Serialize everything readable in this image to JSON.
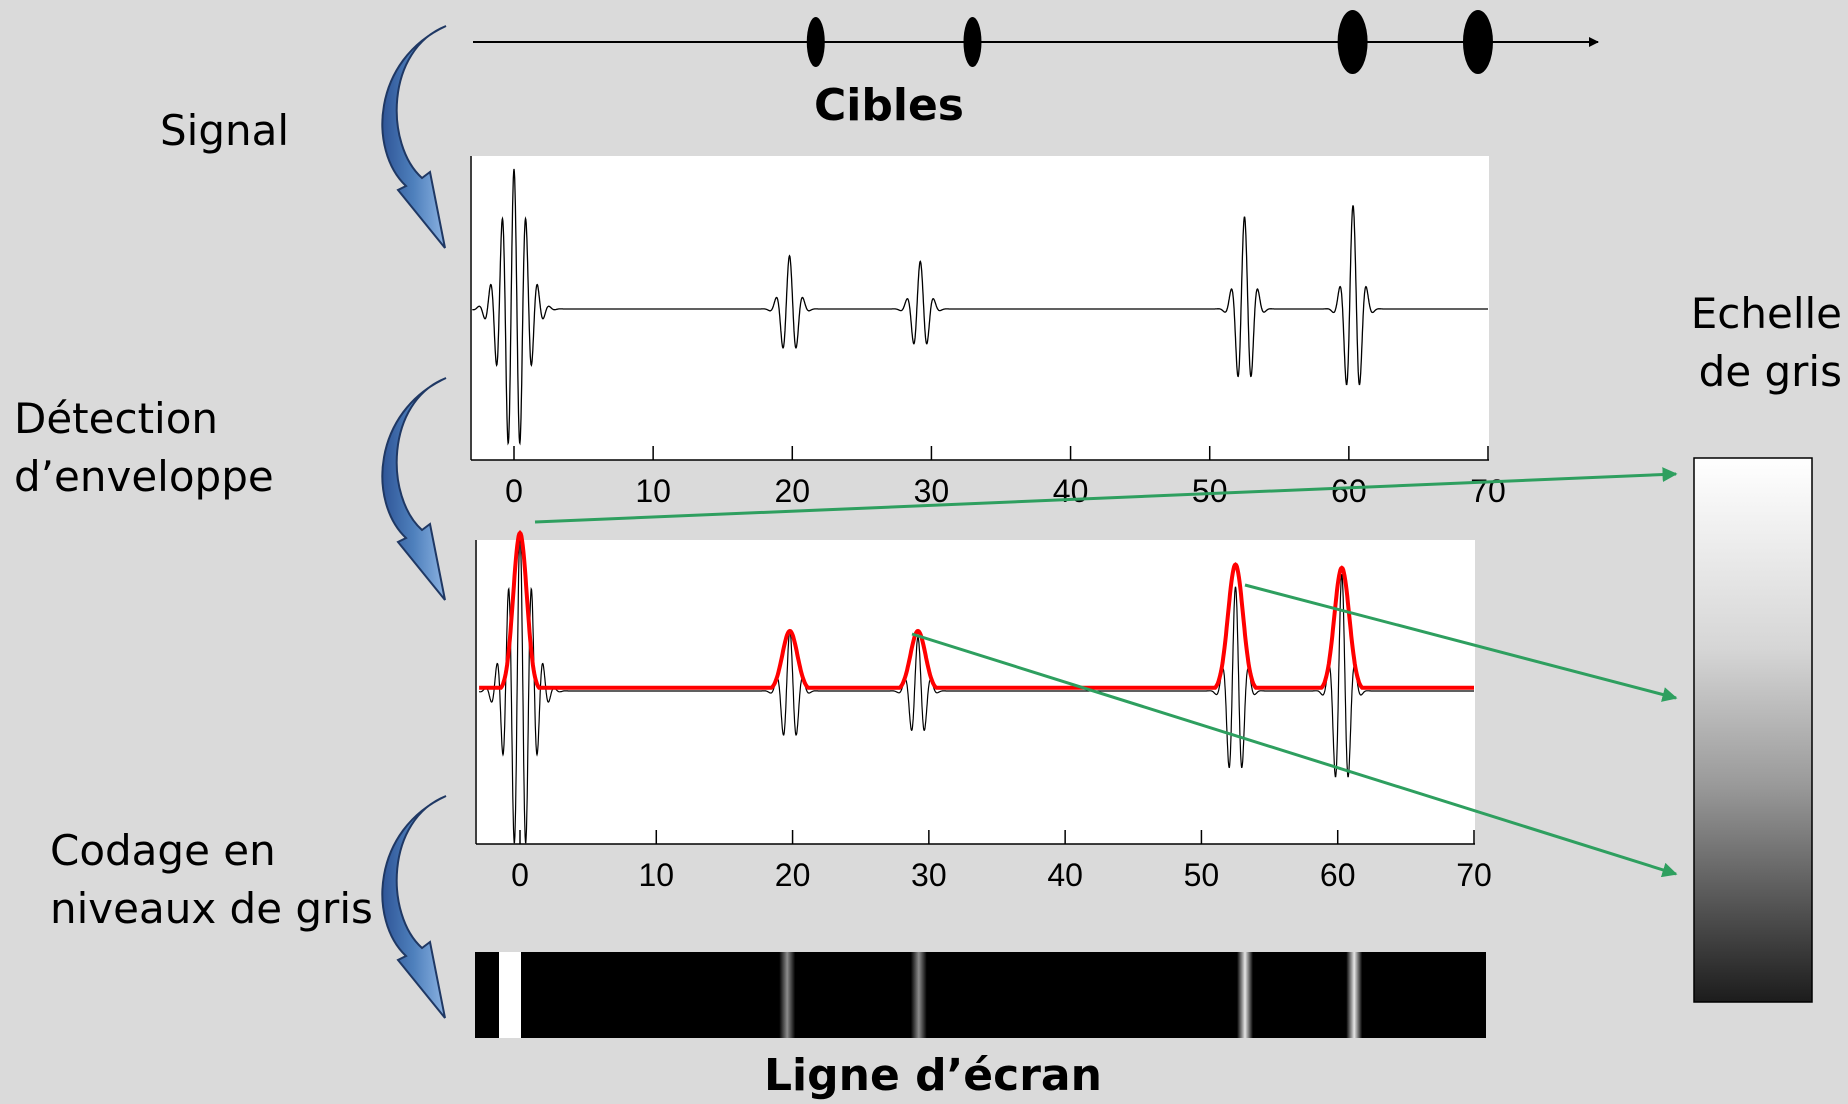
{
  "labels": {
    "signal": "Signal",
    "detection_line1": "Détection",
    "detection_line2": "d’enveloppe",
    "codage_line1": "Codage en",
    "codage_line2": "niveaux de gris",
    "echelle_line1": "Echelle",
    "echelle_line2": "de gris",
    "cibles": "Cibles",
    "ligne_ecran": "Ligne d’écran"
  },
  "targets": {
    "positions": [
      22,
      32,
      56,
      64
    ],
    "sizes": [
      "small",
      "small",
      "large",
      "large"
    ]
  },
  "x_axis": {
    "ticks": [
      0,
      10,
      20,
      30,
      40,
      50,
      60,
      70
    ],
    "tick_labels": [
      "0",
      "10",
      "20",
      "30",
      "40",
      "50",
      "60",
      "70"
    ]
  },
  "chart_data": [
    {
      "type": "line",
      "name": "rf_signal",
      "xlim": [
        -3,
        70
      ],
      "echoes": [
        {
          "x": 0.0,
          "amplitude": 1.0
        },
        {
          "x": 19.8,
          "amplitude": 0.38
        },
        {
          "x": 29.2,
          "amplitude": 0.34
        },
        {
          "x": 52.5,
          "amplitude": 0.66
        },
        {
          "x": 60.3,
          "amplitude": 0.74
        }
      ]
    },
    {
      "type": "line",
      "name": "envelope",
      "xlim": [
        -3,
        70
      ],
      "envelope_color": "#ff0000",
      "peaks": [
        {
          "x": 0.0,
          "amplitude": 1.0
        },
        {
          "x": 19.8,
          "amplitude": 0.38
        },
        {
          "x": 29.2,
          "amplitude": 0.38
        },
        {
          "x": 52.5,
          "amplitude": 0.8
        },
        {
          "x": 60.3,
          "amplitude": 0.78
        }
      ]
    },
    {
      "type": "heatmap",
      "name": "screen_line",
      "xlim": [
        -3,
        70
      ],
      "bands": [
        {
          "x": 0.0,
          "intensity": 1.0
        },
        {
          "x": 19.8,
          "intensity": 0.55
        },
        {
          "x": 29.2,
          "intensity": 0.55
        },
        {
          "x": 52.5,
          "intensity": 0.9
        },
        {
          "x": 60.3,
          "intensity": 0.9
        }
      ]
    }
  ],
  "colors": {
    "background": "#dadada",
    "arrow_blue": "#4f81bd",
    "arrow_green": "#2e9f5f",
    "envelope_red": "#ff0000"
  },
  "icons": [
    "curved-arrow-icon",
    "target-ellipse-icon"
  ]
}
